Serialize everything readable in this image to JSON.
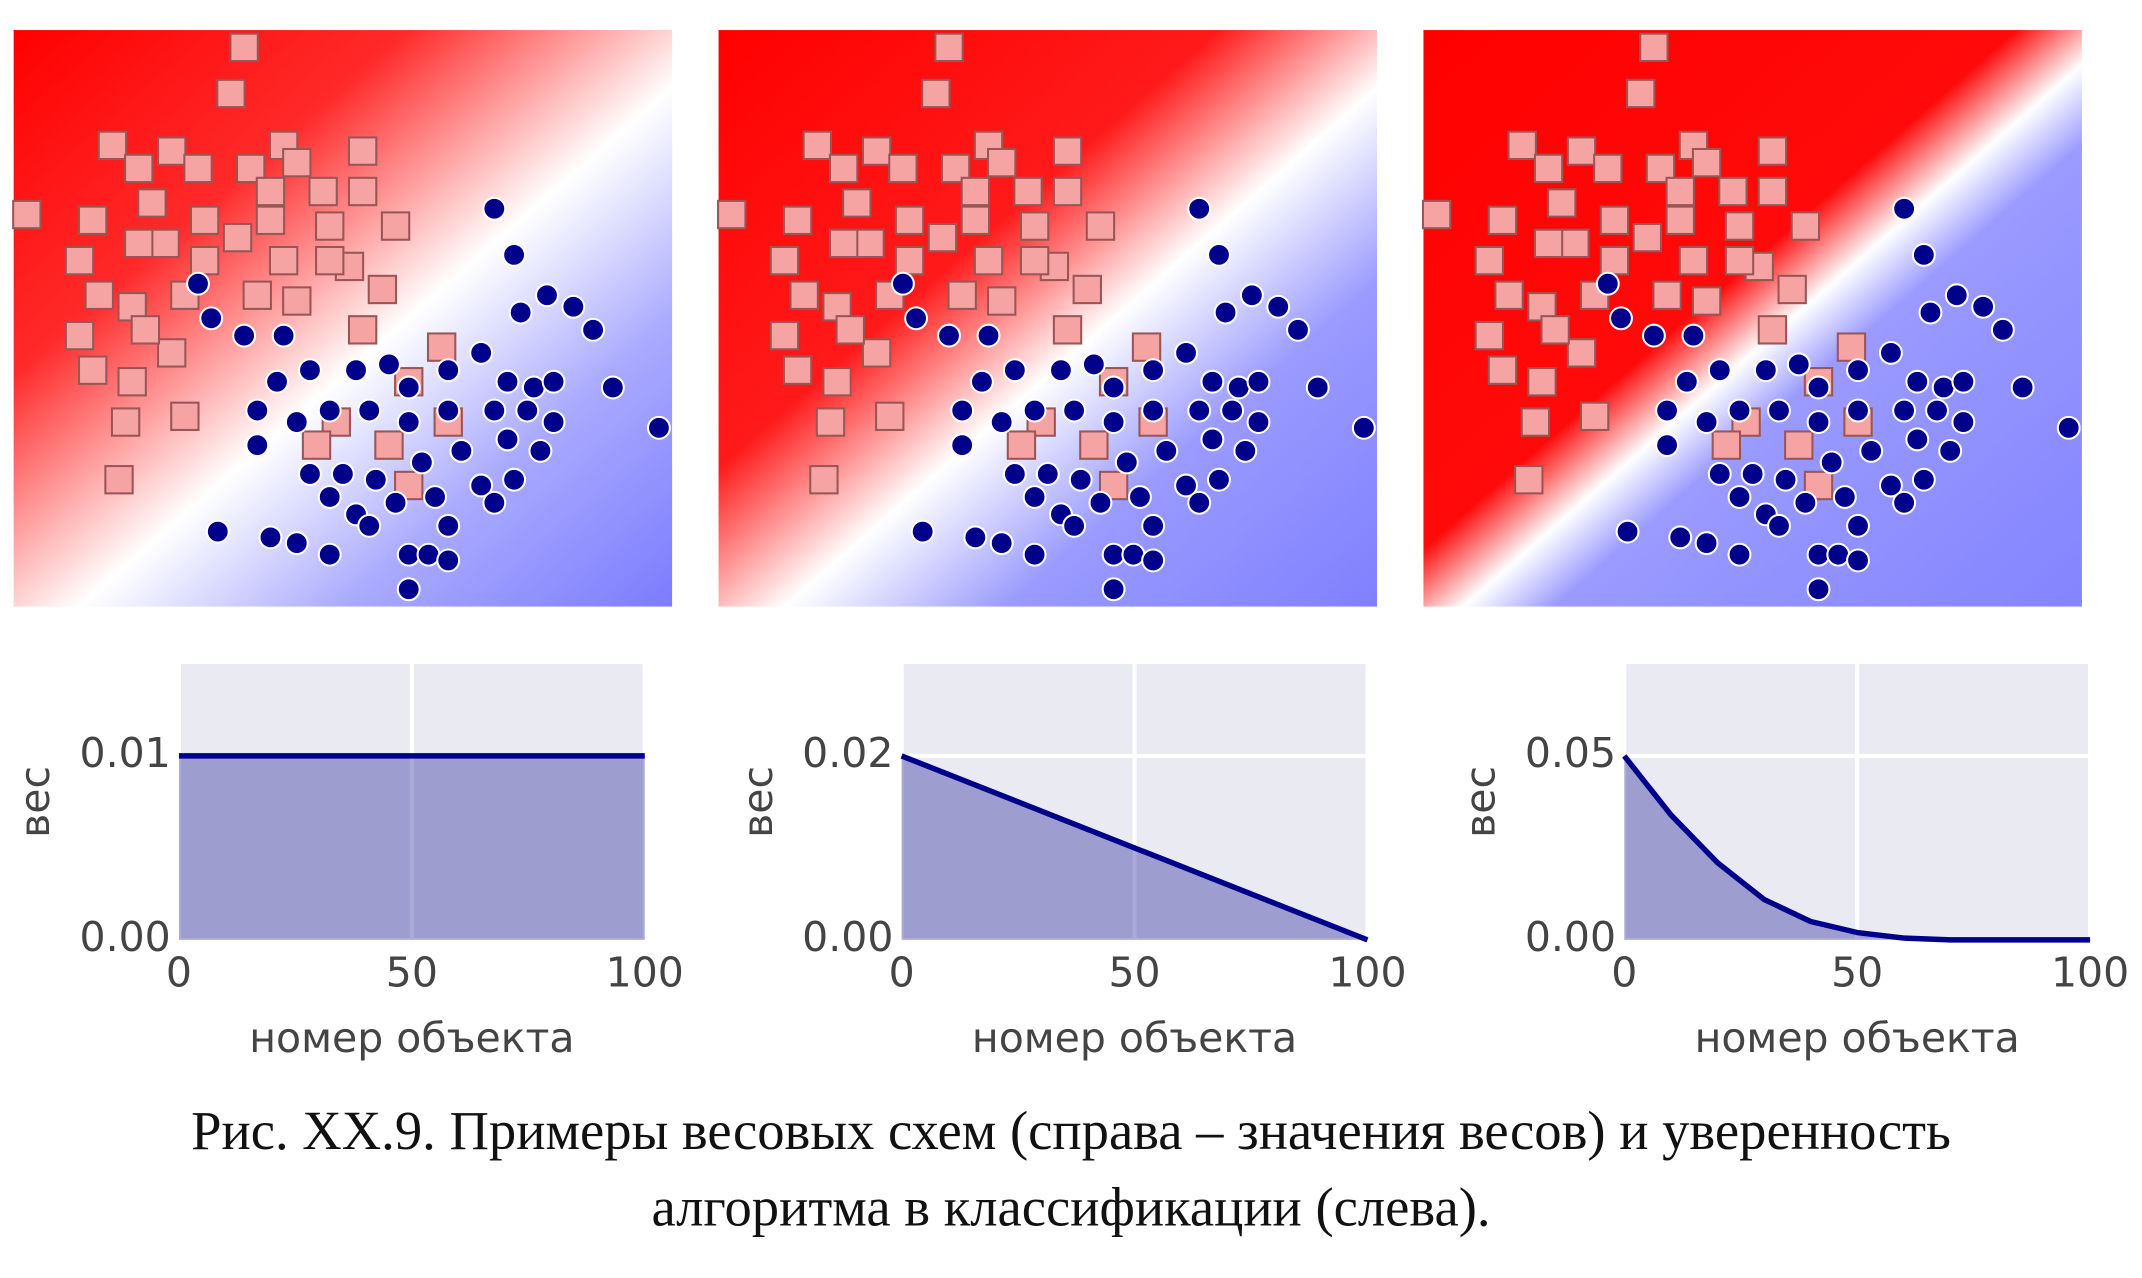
{
  "chart_data": [
    {
      "type": "scatter",
      "xlim": [
        0,
        100
      ],
      "ylim": [
        0,
        100
      ],
      "series": [
        {
          "marker": "square",
          "color": "#f5a3a3",
          "x": [
            35,
            33,
            2,
            15,
            19,
            24,
            28,
            36,
            41,
            43,
            47,
            53,
            53,
            58,
            12,
            10,
            13,
            18,
            10,
            12,
            24,
            26,
            17,
            16,
            21,
            23,
            29,
            34,
            39,
            41,
            48,
            51,
            56,
            53,
            49,
            46,
            57,
            60,
            60,
            65,
            66,
            37,
            43,
            29,
            19,
            26,
            20,
            18,
            48,
            39
          ],
          "y": [
            97,
            89,
            68,
            80,
            76,
            79,
            76,
            76,
            80,
            77,
            72,
            79,
            72,
            66,
            67,
            60,
            54,
            52,
            47,
            41,
            44,
            33,
            32,
            22,
            70,
            63,
            60,
            64,
            67,
            60,
            66,
            59,
            55,
            48,
            32,
            28,
            28,
            21,
            39,
            45,
            32,
            54,
            53,
            67,
            63,
            54,
            48,
            39,
            60,
            72
          ]
        },
        {
          "marker": "circle",
          "color": "#00008b",
          "x": [
            73,
            76,
            77,
            81,
            85,
            88,
            91,
            98,
            28,
            30,
            35,
            41,
            40,
            45,
            52,
            57,
            60,
            66,
            71,
            75,
            79,
            82,
            37,
            43,
            48,
            54,
            60,
            66,
            73,
            78,
            82,
            37,
            45,
            50,
            55,
            62,
            68,
            75,
            80,
            48,
            52,
            58,
            64,
            71,
            76,
            31,
            39,
            43,
            48,
            54,
            60,
            63,
            66,
            66,
            60,
            73
          ],
          "y": [
            69,
            61,
            51,
            54,
            52,
            48,
            38,
            31,
            56,
            50,
            47,
            47,
            39,
            41,
            41,
            42,
            38,
            41,
            44,
            39,
            38,
            39,
            34,
            32,
            34,
            34,
            32,
            34,
            34,
            34,
            32,
            28,
            23,
            23,
            22,
            25,
            27,
            29,
            27,
            19,
            16,
            18,
            19,
            21,
            22,
            13,
            12,
            11,
            9,
            14,
            9,
            9,
            14,
            8,
            3,
            18
          ]
        }
      ]
    },
    {
      "type": "scatter",
      "xlim": [
        0,
        100
      ],
      "ylim": [
        0,
        100
      ],
      "series": [
        {
          "marker": "square",
          "color": "#f5a3a3",
          "x": [
            35,
            33,
            2,
            15,
            19,
            24,
            28,
            36,
            41,
            43,
            47,
            53,
            53,
            58,
            12,
            10,
            13,
            18,
            10,
            12,
            24,
            26,
            17,
            16,
            21,
            23,
            29,
            34,
            39,
            41,
            48,
            51,
            56,
            53,
            49,
            46,
            57,
            60,
            60,
            65,
            66,
            37,
            43,
            29,
            19,
            26,
            20,
            18,
            48,
            39
          ],
          "y": [
            97,
            89,
            68,
            80,
            76,
            79,
            76,
            76,
            80,
            77,
            72,
            79,
            72,
            66,
            67,
            60,
            54,
            52,
            47,
            41,
            44,
            33,
            32,
            22,
            70,
            63,
            60,
            64,
            67,
            60,
            66,
            59,
            55,
            48,
            32,
            28,
            28,
            21,
            39,
            45,
            32,
            54,
            53,
            67,
            63,
            54,
            48,
            39,
            60,
            72
          ]
        },
        {
          "marker": "circle",
          "color": "#00008b",
          "x": [
            73,
            76,
            77,
            81,
            85,
            88,
            91,
            98,
            28,
            30,
            35,
            41,
            40,
            45,
            52,
            57,
            60,
            66,
            71,
            75,
            79,
            82,
            37,
            43,
            48,
            54,
            60,
            66,
            73,
            78,
            82,
            37,
            45,
            50,
            55,
            62,
            68,
            75,
            80,
            48,
            52,
            58,
            64,
            71,
            76,
            31,
            39,
            43,
            48,
            54,
            60,
            63,
            66,
            66,
            60,
            73
          ],
          "y": [
            69,
            61,
            51,
            54,
            52,
            48,
            38,
            31,
            56,
            50,
            47,
            47,
            39,
            41,
            41,
            42,
            38,
            41,
            44,
            39,
            38,
            39,
            34,
            32,
            34,
            34,
            32,
            34,
            34,
            34,
            32,
            28,
            23,
            23,
            22,
            25,
            27,
            29,
            27,
            19,
            16,
            18,
            19,
            21,
            22,
            13,
            12,
            11,
            9,
            14,
            9,
            9,
            14,
            8,
            3,
            18
          ]
        }
      ]
    },
    {
      "type": "scatter",
      "xlim": [
        0,
        100
      ],
      "ylim": [
        0,
        100
      ],
      "series": [
        {
          "marker": "square",
          "color": "#f5a3a3",
          "x": [
            35,
            33,
            2,
            15,
            19,
            24,
            28,
            36,
            41,
            43,
            47,
            53,
            53,
            58,
            12,
            10,
            13,
            18,
            10,
            12,
            24,
            26,
            17,
            16,
            21,
            23,
            29,
            34,
            39,
            41,
            48,
            51,
            56,
            53,
            49,
            46,
            57,
            60,
            60,
            65,
            66,
            37,
            43,
            29,
            19,
            26,
            20,
            18,
            48,
            39
          ],
          "y": [
            97,
            89,
            68,
            80,
            76,
            79,
            76,
            76,
            80,
            77,
            72,
            79,
            72,
            66,
            67,
            60,
            54,
            52,
            47,
            41,
            44,
            33,
            32,
            22,
            70,
            63,
            60,
            64,
            67,
            60,
            66,
            59,
            55,
            48,
            32,
            28,
            28,
            21,
            39,
            45,
            32,
            54,
            53,
            67,
            63,
            54,
            48,
            39,
            60,
            72
          ]
        },
        {
          "marker": "circle",
          "color": "#00008b",
          "x": [
            73,
            76,
            77,
            81,
            85,
            88,
            91,
            98,
            28,
            30,
            35,
            41,
            40,
            45,
            52,
            57,
            60,
            66,
            71,
            75,
            79,
            82,
            37,
            43,
            48,
            54,
            60,
            66,
            73,
            78,
            82,
            37,
            45,
            50,
            55,
            62,
            68,
            75,
            80,
            48,
            52,
            58,
            64,
            71,
            76,
            31,
            39,
            43,
            48,
            54,
            60,
            63,
            66,
            66,
            60,
            73
          ],
          "y": [
            69,
            61,
            51,
            54,
            52,
            48,
            38,
            31,
            56,
            50,
            47,
            47,
            39,
            41,
            41,
            42,
            38,
            41,
            44,
            39,
            38,
            39,
            34,
            32,
            34,
            34,
            32,
            34,
            34,
            34,
            32,
            28,
            23,
            23,
            22,
            25,
            27,
            29,
            27,
            19,
            16,
            18,
            19,
            21,
            22,
            13,
            12,
            11,
            9,
            14,
            9,
            9,
            14,
            8,
            3,
            18
          ]
        }
      ]
    },
    {
      "type": "line",
      "x_label": "номер объекта",
      "y_label": "вес",
      "x": [
        0,
        100
      ],
      "values": [
        0.01,
        0.01
      ],
      "color": "#00008b",
      "xlim": [
        0,
        100
      ],
      "ylim": [
        0,
        0.015
      ],
      "xticks": [
        0,
        50,
        100
      ],
      "yticks": [
        {
          "value": 0,
          "label": "0.00"
        },
        0.01
      ],
      "grid": true
    },
    {
      "type": "line",
      "x_label": "номер объекта",
      "y_label": "вес",
      "x": [
        0,
        100
      ],
      "values": [
        0.02,
        0
      ],
      "color": "#00008b",
      "xlim": [
        0,
        100
      ],
      "ylim": [
        0,
        0.03
      ],
      "xticks": [
        0,
        50,
        100
      ],
      "yticks": [
        {
          "value": 0,
          "label": "0.00"
        },
        0.02
      ],
      "grid": true
    },
    {
      "type": "line",
      "x_label": "номер объекта",
      "y_label": "вес",
      "x": [
        0,
        10,
        20,
        30,
        40,
        50,
        60,
        70,
        80,
        90,
        100
      ],
      "values": [
        0.05,
        0.034,
        0.021,
        0.011,
        0.005,
        0.002,
        0.0005,
        0,
        0,
        0,
        0
      ],
      "color": "#00008b",
      "xlim": [
        0,
        100
      ],
      "ylim": [
        0,
        0.075
      ],
      "xticks": [
        0,
        50,
        100
      ],
      "yticks": [
        {
          "value": 0,
          "label": "0.00"
        },
        0.05
      ],
      "grid": true
    }
  ],
  "caption": [
    "Рис. XX.9. Примеры весовых схем (справа – значения весов) и уверенность",
    "алгоритма в классификации (слева)."
  ]
}
